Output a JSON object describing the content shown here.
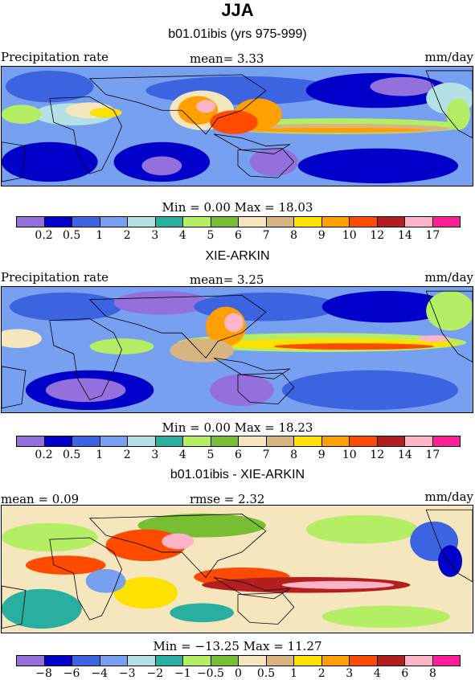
{
  "title": "JJA",
  "palette_abs": [
    "#9370db",
    "#0000c8",
    "#3c64e1",
    "#78a0f0",
    "#b4e1e6",
    "#28afa0",
    "#b4ee64",
    "#78be32",
    "#f5e6be",
    "#d7b480",
    "#ffe100",
    "#ffa000",
    "#ff4b00",
    "#b41e1e",
    "#ffb4c8",
    "#ff1e96"
  ],
  "palette_diff": [
    "#9370db",
    "#0000c8",
    "#3c64e1",
    "#78a0f0",
    "#b4e1e6",
    "#28afa0",
    "#b4ee64",
    "#78be32",
    "#f5e6be",
    "#d7b480",
    "#ffe100",
    "#ffa000",
    "#ff4b00",
    "#b41e1e",
    "#ffb4c8",
    "#ff1e96"
  ],
  "panels": [
    {
      "subtitle": "b01.01ibis (yrs 975-999)",
      "left_label": "Precipitation rate",
      "center_label": "mean=   3.33",
      "units": "mm/day",
      "minmax": "Min =   0.00 Max =   18.03",
      "ticks": [
        "0.2",
        "0.5",
        "1",
        "2",
        "3",
        "4",
        "5",
        "6",
        "7",
        "8",
        "9",
        "10",
        "12",
        "14",
        "17"
      ]
    },
    {
      "subtitle": "XIE-ARKIN",
      "left_label": "Precipitation rate",
      "center_label": "mean=   3.25",
      "units": "mm/day",
      "minmax": "Min =   0.00 Max =   18.23",
      "ticks": [
        "0.2",
        "0.5",
        "1",
        "2",
        "3",
        "4",
        "5",
        "6",
        "7",
        "8",
        "9",
        "10",
        "12",
        "14",
        "17"
      ]
    },
    {
      "subtitle": "b01.01ibis - XIE-ARKIN",
      "left_label": "mean =   0.09",
      "center_label": "rmse =   2.32",
      "units": "mm/day",
      "minmax": "Min = −13.25 Max =   11.27",
      "ticks": [
        "−8",
        "−6",
        "−4",
        "−3",
        "−2",
        "−1",
        "−0.5",
        "0",
        "0.5",
        "1",
        "2",
        "3",
        "4",
        "6",
        "8"
      ]
    }
  ]
}
